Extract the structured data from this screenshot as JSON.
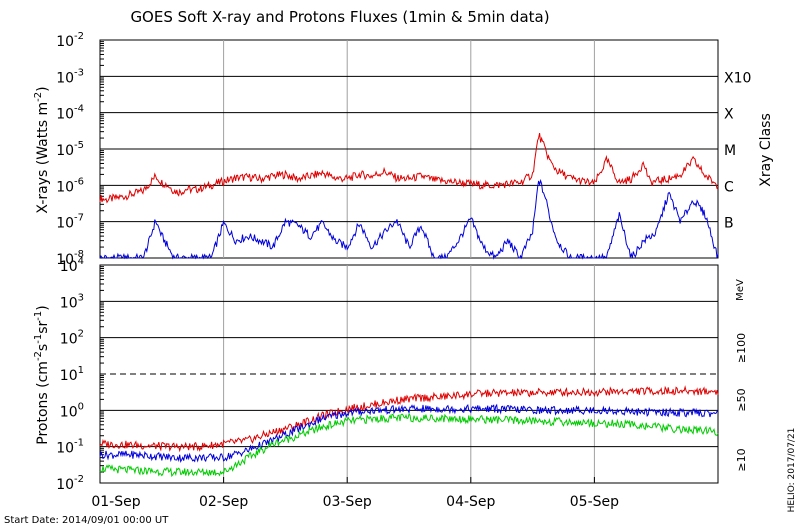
{
  "chart_data": [
    {
      "type": "line",
      "title": "GOES Soft X-ray and Protons Fluxes   (1min & 5min data)",
      "ylabel_text": "X-rays (Watts m",
      "ylabel_sup": "-2",
      "ylabel_close": ")",
      "yscale": "log",
      "ylim": [
        1e-08,
        0.01
      ],
      "y_ticks": [
        {
          "base": "10",
          "exp": "-8",
          "value": 1e-08
        },
        {
          "base": "10",
          "exp": "-7",
          "value": 1e-07
        },
        {
          "base": "10",
          "exp": "-6",
          "value": 1e-06
        },
        {
          "base": "10",
          "exp": "-5",
          "value": 1e-05
        },
        {
          "base": "10",
          "exp": "-4",
          "value": 0.0001
        },
        {
          "base": "10",
          "exp": "-3",
          "value": 0.001
        },
        {
          "base": "10",
          "exp": "-2",
          "value": 0.01
        }
      ],
      "right_axis_label": "Xray Class",
      "class_labels": [
        {
          "label": "X10",
          "value": 0.001
        },
        {
          "label": "X",
          "value": 0.0001
        },
        {
          "label": "M",
          "value": 1e-05
        },
        {
          "label": "C",
          "value": 1e-06
        },
        {
          "label": "B",
          "value": 1e-07
        }
      ],
      "grid": true,
      "series": [
        {
          "color": "#e00000",
          "x": [
            0,
            0.05,
            0.2,
            0.35,
            0.45,
            0.5,
            0.55,
            0.6,
            0.65,
            0.7,
            0.75,
            0.8,
            0.85,
            0.9,
            1.0,
            1.1,
            1.2,
            1.3,
            1.4,
            1.5,
            1.6,
            1.7,
            1.8,
            1.9,
            2.0,
            2.1,
            2.2,
            2.3,
            2.4,
            2.5,
            2.6,
            2.7,
            2.8,
            2.9,
            3.0,
            3.1,
            3.2,
            3.3,
            3.4,
            3.5,
            3.55,
            3.6,
            3.65,
            3.7,
            3.8,
            3.9,
            4.0,
            4.1,
            4.2,
            4.3,
            4.4,
            4.45,
            4.5,
            4.6,
            4.7,
            4.8,
            4.9,
            5.0
          ],
          "y": [
            4.5e-07,
            4e-07,
            5e-07,
            7e-07,
            1.8e-06,
            1.2e-06,
            1e-06,
            7e-07,
            6.5e-07,
            8e-07,
            7.5e-07,
            8e-07,
            9e-07,
            1e-06,
            1.3e-06,
            1.6e-06,
            1.7e-06,
            1.5e-06,
            1.8e-06,
            2e-06,
            1.5e-06,
            1.8e-06,
            2.2e-06,
            1.6e-06,
            1.5e-06,
            2e-06,
            1.8e-06,
            2.4e-06,
            1.6e-06,
            1.5e-06,
            1.8e-06,
            1.4e-06,
            1.3e-06,
            1.2e-06,
            1.1e-06,
            1e-06,
            1e-06,
            1.1e-06,
            1.2e-06,
            2e-06,
            2.5e-05,
            1e-05,
            4e-06,
            2.5e-06,
            1.6e-06,
            1.3e-06,
            1.1e-06,
            5e-06,
            1.2e-06,
            1.5e-06,
            4e-06,
            1.2e-06,
            1.3e-06,
            1.5e-06,
            2e-06,
            5e-06,
            1.8e-06,
            1e-06
          ]
        },
        {
          "color": "#0000dd",
          "x": [
            0,
            0.35,
            0.4,
            0.45,
            0.5,
            0.55,
            0.6,
            0.65,
            0.7,
            0.8,
            0.9,
            1.0,
            1.1,
            1.2,
            1.3,
            1.4,
            1.5,
            1.6,
            1.7,
            1.8,
            1.9,
            2.0,
            2.1,
            2.2,
            2.3,
            2.4,
            2.5,
            2.6,
            2.7,
            2.8,
            2.9,
            3.0,
            3.1,
            3.2,
            3.3,
            3.4,
            3.5,
            3.55,
            3.6,
            3.65,
            3.7,
            3.8,
            3.9,
            4.0,
            4.1,
            4.2,
            4.3,
            4.4,
            4.5,
            4.6,
            4.7,
            4.8,
            4.9,
            5.0
          ],
          "y": [
            1e-08,
            1e-08,
            3e-08,
            1.1e-07,
            4e-08,
            2e-08,
            1e-08,
            1e-08,
            1e-08,
            1e-08,
            1e-08,
            9e-08,
            3e-08,
            4e-08,
            3e-08,
            2e-08,
            1e-07,
            8e-08,
            4e-08,
            9e-08,
            3e-08,
            2e-08,
            9e-08,
            2e-08,
            5e-08,
            1.1e-07,
            2e-08,
            8e-08,
            1e-08,
            1e-08,
            3e-08,
            1.2e-07,
            2e-08,
            1e-08,
            3e-08,
            1e-08,
            5e-08,
            1.5e-06,
            5e-07,
            1e-07,
            3e-08,
            1e-08,
            1e-08,
            1e-08,
            1e-08,
            1.5e-07,
            1e-08,
            3e-08,
            5e-08,
            6e-07,
            1e-07,
            4e-07,
            1.5e-07,
            1e-08
          ]
        }
      ]
    },
    {
      "type": "line",
      "ylabel_text": "Protons (cm",
      "ylabel_sup1": "-2",
      "ylabel_mid1": "s",
      "ylabel_sup2": "-1",
      "ylabel_mid2": "sr",
      "ylabel_sup3": "-1",
      "ylabel_close": ")",
      "yscale": "log",
      "ylim": [
        0.01,
        10000
      ],
      "y_ticks": [
        {
          "base": "10",
          "exp": "-2",
          "value": 0.01
        },
        {
          "base": "10",
          "exp": "-1",
          "value": 0.1
        },
        {
          "base": "10",
          "exp": "0",
          "value": 1
        },
        {
          "base": "10",
          "exp": "1",
          "value": 10
        },
        {
          "base": "10",
          "exp": "2",
          "value": 100
        },
        {
          "base": "10",
          "exp": "3",
          "value": 1000
        },
        {
          "base": "10",
          "exp": "4",
          "value": 10000
        }
      ],
      "threshold_value": 10,
      "x_categories": [
        "01-Sep",
        "02-Sep",
        "03-Sep",
        "04-Sep",
        "05-Sep"
      ],
      "unit_label": "MeV",
      "grid": true,
      "series": [
        {
          "name": "≥10",
          "color": "#e00000",
          "x": [
            0,
            0.3,
            0.6,
            0.8,
            1.0,
            1.2,
            1.4,
            1.6,
            1.8,
            2.0,
            2.2,
            2.4,
            2.6,
            2.8,
            3.0,
            3.2,
            3.4,
            3.6,
            3.8,
            4.0,
            4.2,
            4.4,
            4.6,
            4.8,
            5.0
          ],
          "y": [
            0.12,
            0.11,
            0.1,
            0.1,
            0.12,
            0.15,
            0.25,
            0.4,
            0.7,
            1.1,
            1.4,
            1.9,
            2.2,
            2.4,
            2.8,
            3.0,
            3.0,
            3.1,
            3.2,
            3.2,
            3.3,
            3.4,
            3.4,
            3.4,
            3.3
          ]
        },
        {
          "name": "≥50",
          "color": "#0000dd",
          "x": [
            0,
            0.3,
            0.6,
            0.8,
            1.0,
            1.2,
            1.4,
            1.6,
            1.8,
            2.0,
            2.2,
            2.4,
            2.6,
            2.8,
            3.0,
            3.2,
            3.4,
            3.6,
            3.8,
            4.0,
            4.2,
            4.4,
            4.6,
            4.8,
            5.0
          ],
          "y": [
            0.06,
            0.06,
            0.05,
            0.05,
            0.05,
            0.08,
            0.15,
            0.3,
            0.6,
            0.85,
            1.0,
            1.05,
            1.1,
            1.1,
            1.1,
            1.1,
            1.05,
            1.0,
            1.0,
            1.0,
            0.95,
            0.9,
            0.88,
            0.85,
            0.82
          ]
        },
        {
          "name": "≥100",
          "color": "#00cc00",
          "x": [
            0,
            0.3,
            0.6,
            0.8,
            1.0,
            1.2,
            1.4,
            1.6,
            1.8,
            2.0,
            2.2,
            2.4,
            2.6,
            2.8,
            3.0,
            3.2,
            3.4,
            3.6,
            3.8,
            4.0,
            4.2,
            4.4,
            4.6,
            4.8,
            5.0
          ],
          "y": [
            0.025,
            0.022,
            0.02,
            0.02,
            0.02,
            0.05,
            0.12,
            0.2,
            0.35,
            0.5,
            0.58,
            0.62,
            0.62,
            0.6,
            0.58,
            0.55,
            0.52,
            0.5,
            0.47,
            0.45,
            0.42,
            0.38,
            0.32,
            0.28,
            0.26
          ]
        }
      ]
    }
  ],
  "footer": {
    "start_date": "Start Date: 2014/09/01 00:00 UT",
    "credit": "HELIO: 2017/07/21"
  },
  "colors": {
    "red": "#e00000",
    "blue": "#0000dd",
    "green": "#00cc00"
  }
}
